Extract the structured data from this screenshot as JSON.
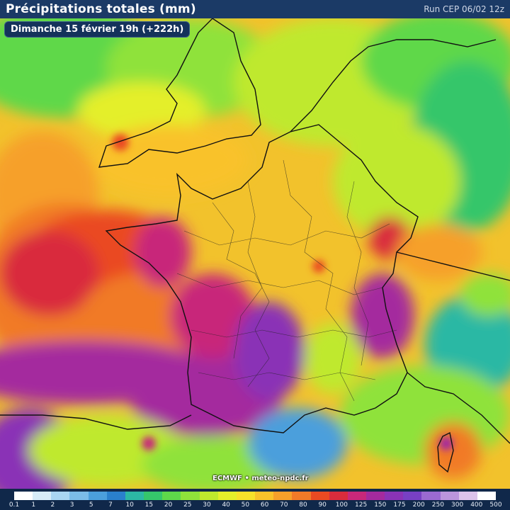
{
  "header": {
    "title": "Précipitations totales (mm)",
    "run": "Run CEP 06/02 12z"
  },
  "badge": "Dimanche 15 février 19h (+222h)",
  "credit": "ECMWF • meteo-npdc.fr",
  "legend": {
    "labels": [
      "0.1",
      "1",
      "2",
      "3",
      "5",
      "7",
      "10",
      "15",
      "20",
      "25",
      "30",
      "40",
      "50",
      "60",
      "70",
      "80",
      "90",
      "100",
      "125",
      "150",
      "175",
      "200",
      "250",
      "300",
      "400",
      "500"
    ],
    "colors": [
      "#ffffff",
      "#d7ecf8",
      "#a9d5f2",
      "#7bbce8",
      "#4b9fdc",
      "#2a80cc",
      "#2cb8a4",
      "#35c66b",
      "#5ed84a",
      "#8fe23a",
      "#bfe92d",
      "#e4ef2a",
      "#f7e12a",
      "#f9c22a",
      "#f6a02a",
      "#f17a28",
      "#ea4a22",
      "#d92c3c",
      "#c8287a",
      "#a42a9e",
      "#8a33b6",
      "#7840c4",
      "#9a6ad1",
      "#bb95dc",
      "#dcc3ea",
      "#ffffff"
    ]
  },
  "map": {
    "regions": [
      "France",
      "United Kingdom",
      "Belgium",
      "Netherlands",
      "Germany",
      "Switzerland",
      "Italy",
      "Spain",
      "Corsica"
    ]
  }
}
